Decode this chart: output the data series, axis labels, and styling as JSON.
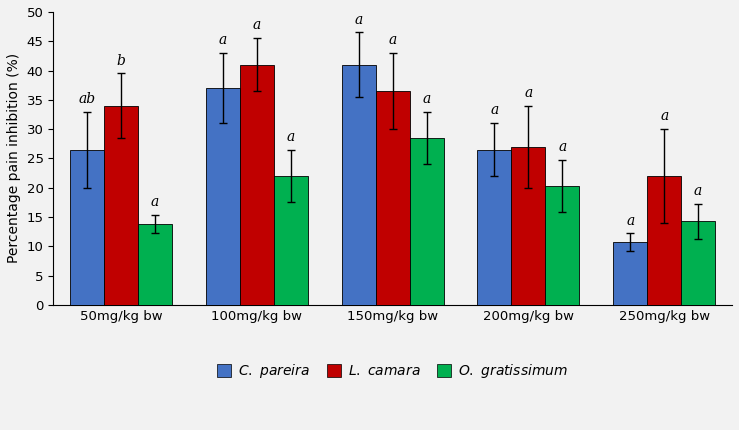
{
  "categories": [
    "50mg/kg bw",
    "100mg/kg bw",
    "150mg/kg bw",
    "200mg/kg bw",
    "250mg/kg bw"
  ],
  "series": {
    "C. pareira": {
      "values": [
        26.5,
        37.0,
        41.0,
        26.5,
        10.7
      ],
      "errors": [
        6.5,
        6.0,
        5.5,
        4.5,
        1.5
      ],
      "color": "#4472C4",
      "labels": [
        "ab",
        "a",
        "a",
        "a",
        "a"
      ]
    },
    "L. camara": {
      "values": [
        34.0,
        41.0,
        36.5,
        27.0,
        22.0
      ],
      "errors": [
        5.5,
        4.5,
        6.5,
        7.0,
        8.0
      ],
      "color": "#C00000",
      "labels": [
        "b",
        "a",
        "a",
        "a",
        "a"
      ]
    },
    "O. gratissimum": {
      "values": [
        13.8,
        22.0,
        28.5,
        20.3,
        14.3
      ],
      "errors": [
        1.5,
        4.5,
        4.5,
        4.5,
        3.0
      ],
      "color": "#00B050",
      "labels": [
        "a",
        "a",
        "a",
        "a",
        "a"
      ]
    }
  },
  "ylabel": "Percentage pain inhibition (%)",
  "ylim": [
    0,
    50
  ],
  "yticks": [
    0,
    5,
    10,
    15,
    20,
    25,
    30,
    35,
    40,
    45,
    50
  ],
  "bar_width": 0.25,
  "legend_colors": [
    "#4472C4",
    "#C00000",
    "#00B050"
  ],
  "label_fontsize": 10,
  "tick_fontsize": 9.5,
  "stat_label_fontsize": 10,
  "capsize": 3,
  "bg_color": "#F2F2F2"
}
